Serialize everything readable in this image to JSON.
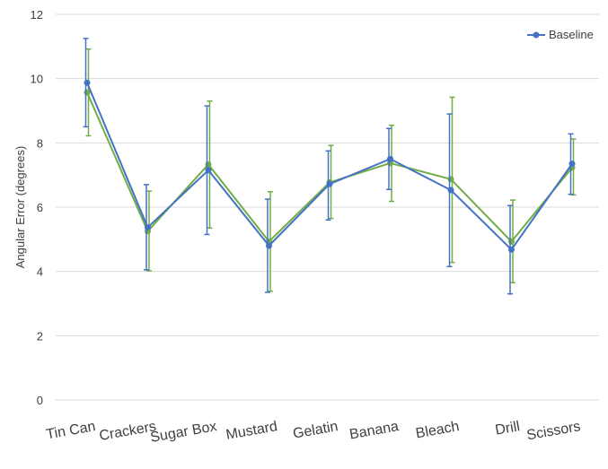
{
  "chart_data": {
    "type": "line",
    "title": "",
    "xlabel": "",
    "ylabel": "Angular Error (degrees)",
    "ylim": [
      0,
      12
    ],
    "yticks": [
      0,
      2,
      4,
      6,
      8,
      10,
      12
    ],
    "grid": true,
    "legend_position": "top-right",
    "categories": [
      "Tin Can",
      "Crackers",
      "Sugar Box",
      "Mustard",
      "Gelatin",
      "Banana",
      "Bleach",
      "Drill",
      "Scissors"
    ],
    "series": [
      {
        "name": "Baseline",
        "color": "#4472c4",
        "values": [
          9.87,
          5.37,
          7.15,
          4.8,
          6.72,
          7.5,
          6.53,
          4.68,
          7.35
        ],
        "error_low": [
          8.5,
          4.05,
          5.15,
          3.35,
          5.6,
          6.55,
          4.15,
          3.3,
          6.4
        ],
        "error_high": [
          11.25,
          6.7,
          9.15,
          6.25,
          7.75,
          8.45,
          8.9,
          6.05,
          8.28
        ]
      },
      {
        "name": "",
        "color": "#70ad47",
        "values": [
          9.57,
          5.25,
          7.33,
          4.93,
          6.77,
          7.37,
          6.87,
          4.93,
          7.23
        ],
        "error_low": [
          8.22,
          4.02,
          5.35,
          3.38,
          5.65,
          6.18,
          4.28,
          3.65,
          6.38
        ],
        "error_high": [
          10.92,
          6.5,
          9.3,
          6.48,
          7.92,
          8.55,
          9.42,
          6.22,
          8.12
        ]
      }
    ]
  }
}
